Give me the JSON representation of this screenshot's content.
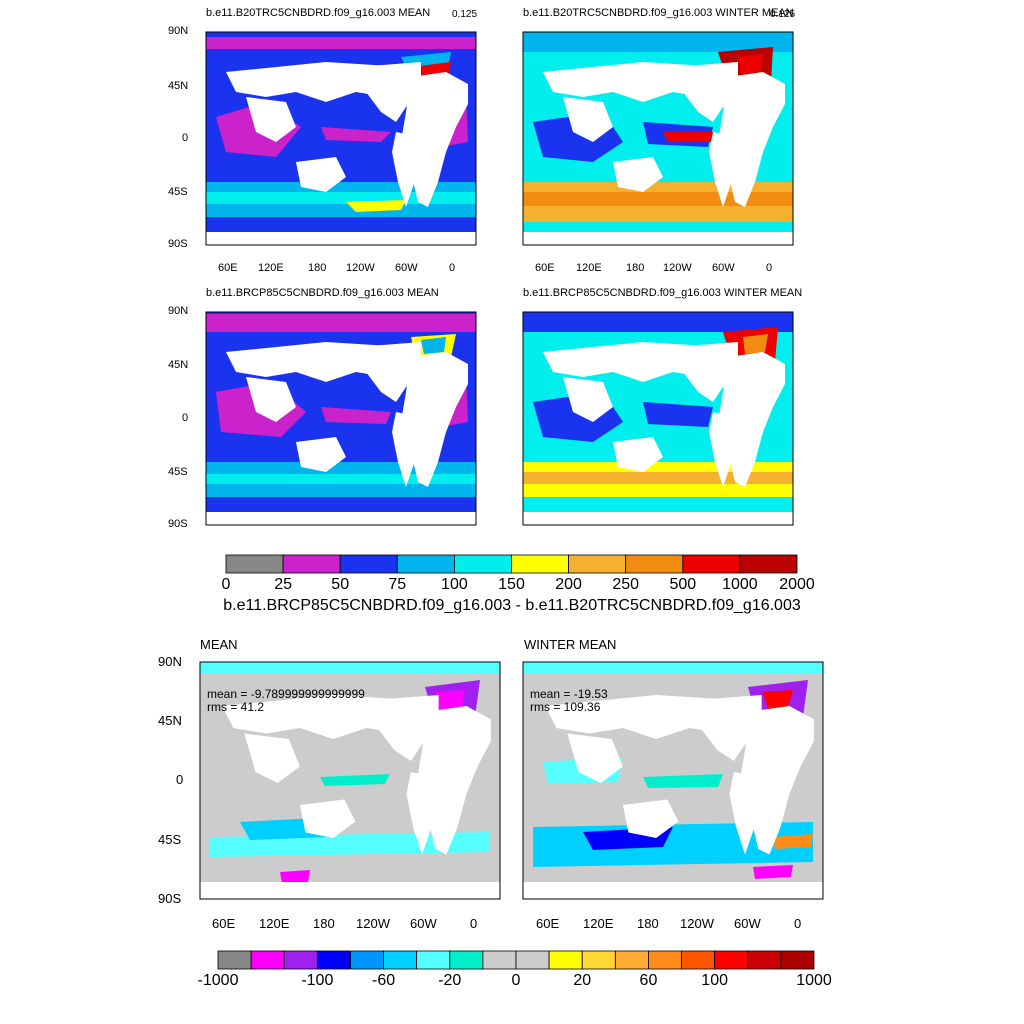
{
  "panels": {
    "top_left": {
      "title": "b.e11.B20TRC5CNBDRD.f09_g16.003 MEAN",
      "corner": "0.125"
    },
    "top_right": {
      "title": "b.e11.B20TRC5CNBDRD.f09_g16.003 WINTER MEAN",
      "corner": "0.125"
    },
    "mid_left": {
      "title": "b.e11.BRCP85C5CNBDRD.f09_g16.003 MEAN"
    },
    "mid_right": {
      "title": "b.e11.BRCP85C5CNBDRD.f09_g16.003 WINTER MEAN"
    },
    "diff_left": {
      "title": "MEAN",
      "mean": "mean = -9.789999999999999",
      "rms": "rms = 41.2"
    },
    "diff_right": {
      "title": "WINTER MEAN",
      "mean": "mean = -19.53",
      "rms": "rms = 109.36"
    }
  },
  "axes": {
    "lat_labels": [
      "90N",
      "45N",
      "0",
      "45S",
      "90S"
    ],
    "lon_labels": [
      "60E",
      "120E",
      "180",
      "120W",
      "60W",
      "0"
    ]
  },
  "colorbar_top": {
    "labels": [
      "0",
      "25",
      "50",
      "75",
      "100",
      "150",
      "200",
      "250",
      "500",
      "1000",
      "2000"
    ],
    "colors": [
      "#888888",
      "#cc22cc",
      "#1a33ee",
      "#00b4ee",
      "#00eeee",
      "#ffff00",
      "#f5b030",
      "#f28c10",
      "#ee0000",
      "#bb0000"
    ]
  },
  "difference_title": "b.e11.BRCP85C5CNBDRD.f09_g16.003 - b.e11.B20TRC5CNBDRD.f09_g16.003",
  "colorbar_bottom": {
    "labels": [
      "-1000",
      "-100",
      "-60",
      "-20",
      "0",
      "20",
      "60",
      "100",
      "1000"
    ],
    "colors": [
      "#888888",
      "#ff00ff",
      "#a020f0",
      "#0000ff",
      "#0096ff",
      "#00d0ff",
      "#55ffff",
      "#00eecc",
      "#cccccc",
      "#cccccc",
      "#ffff00",
      "#ffd633",
      "#ffaa33",
      "#ff8c1a",
      "#ff5500",
      "#ff0000",
      "#cc0000",
      "#aa0000"
    ]
  },
  "colors": {
    "land": "#ffffff",
    "ocean_top_base": "#1a33ee",
    "ocean_diff_base": "#cccccc"
  }
}
